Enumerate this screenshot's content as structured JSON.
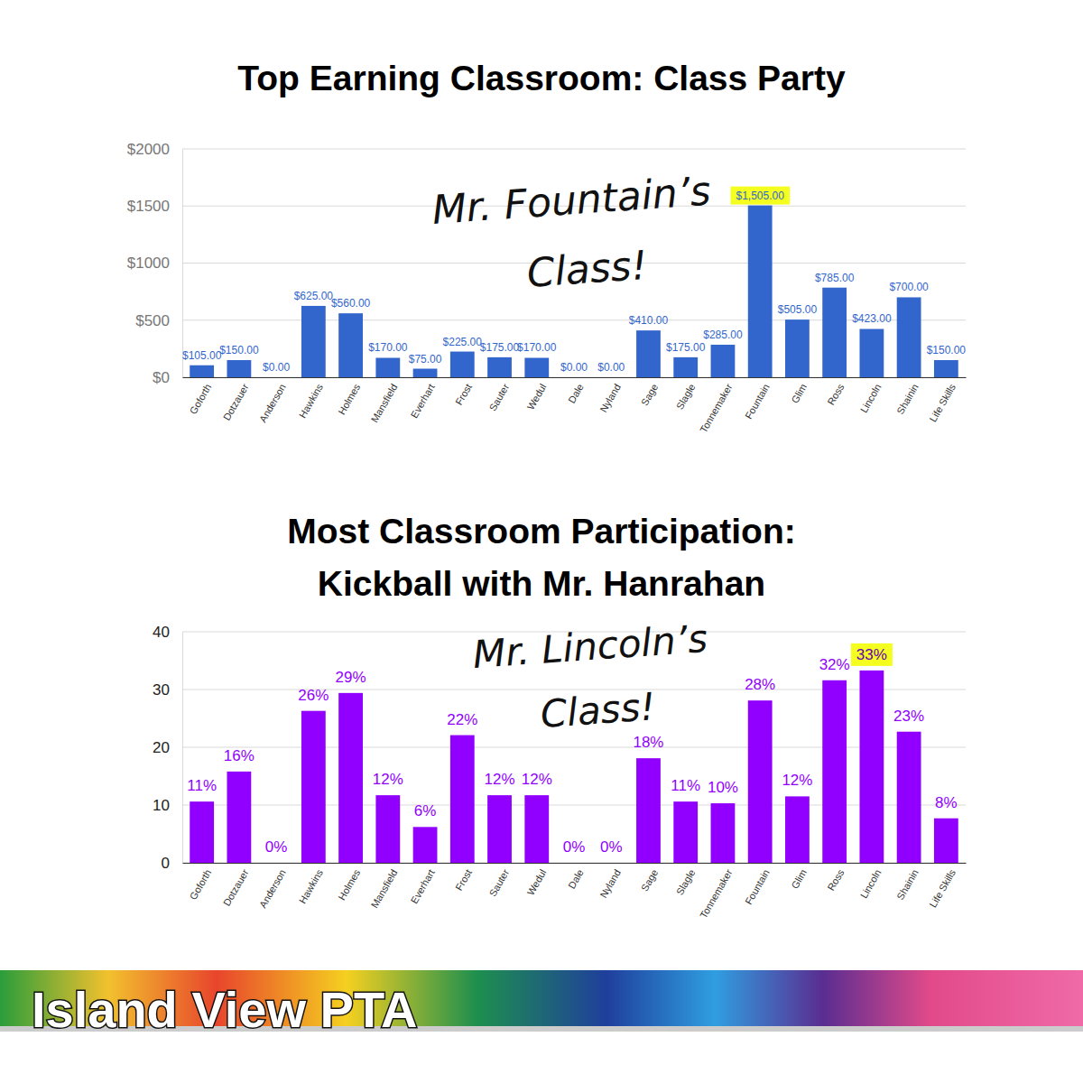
{
  "chart_data": [
    {
      "type": "bar",
      "title": "Top Earning Classroom: Class Party",
      "annotation": [
        "Mr. Fountain’s",
        "Class!"
      ],
      "categories": [
        "Goforth",
        "Dotzauer",
        "Anderson",
        "Hawkins",
        "Holmes",
        "Mansfield",
        "Everhart",
        "Frost",
        "Sauter",
        "Wedul",
        "Dale",
        "Nyland",
        "Sage",
        "Slagle",
        "Tonnemaker",
        "Fountain",
        "Glim",
        "Ross",
        "Lincoln",
        "Shainin",
        "Life Skills"
      ],
      "values": [
        105,
        150,
        0,
        625,
        560,
        170,
        75,
        225,
        175,
        170,
        0,
        0,
        410,
        175,
        285,
        1505,
        505,
        785,
        423,
        700,
        150
      ],
      "value_labels": [
        "$105.00",
        "$150.00",
        "$0.00",
        "$625.00",
        "$560.00",
        "$170.00",
        "$75.00",
        "$225.00",
        "$175.00",
        "$170.00",
        "$0.00",
        "$0.00",
        "$410.00",
        "$175.00",
        "$285.00",
        "$1,505.00",
        "$505.00",
        "$785.00",
        "$423.00",
        "$700.00",
        "$150.00"
      ],
      "color": "#3366cc",
      "ylim": [
        0,
        2000
      ],
      "yticks": [
        {
          "value": 0,
          "label": "$0"
        },
        {
          "value": 500,
          "label": "$500"
        },
        {
          "value": 1000,
          "label": "$1000"
        },
        {
          "value": 1500,
          "label": "$1500"
        },
        {
          "value": 2000,
          "label": "$2000"
        }
      ],
      "grid": true,
      "data_labels": true
    },
    {
      "type": "bar",
      "title": [
        "Most Classroom Participation:",
        "Kickball with Mr. Hanrahan"
      ],
      "annotation": [
        "Mr. Lincoln’s",
        "Class!"
      ],
      "categories": [
        "Goforth",
        "Dotzauer",
        "Anderson",
        "Hawkins",
        "Holmes",
        "Mansfield",
        "Everhart",
        "Frost",
        "Sauter",
        "Wedul",
        "Dale",
        "Nyland",
        "Sage",
        "Slagle",
        "Tonnemaker",
        "Fountain",
        "Glim",
        "Ross",
        "Lincoln",
        "Shainin",
        "Life Skills"
      ],
      "values": [
        10.6,
        15.8,
        0,
        26.3,
        29.4,
        11.7,
        6.2,
        22.1,
        11.7,
        11.7,
        0,
        0,
        18.1,
        10.6,
        10.3,
        28.1,
        11.5,
        31.6,
        33.3,
        22.7,
        7.7
      ],
      "value_labels": [
        "11%",
        "16%",
        "0%",
        "26%",
        "29%",
        "12%",
        "6%",
        "22%",
        "12%",
        "12%",
        "0%",
        "0%",
        "18%",
        "11%",
        "10%",
        "28%",
        "12%",
        "32%",
        "33%",
        "23%",
        "8%"
      ],
      "color": "#9100ff",
      "ylim": [
        0,
        40
      ],
      "yticks": [
        0,
        10,
        20,
        30,
        40
      ],
      "grid": true,
      "data_labels": true
    }
  ],
  "footer": {
    "text": "Island View PTA"
  }
}
